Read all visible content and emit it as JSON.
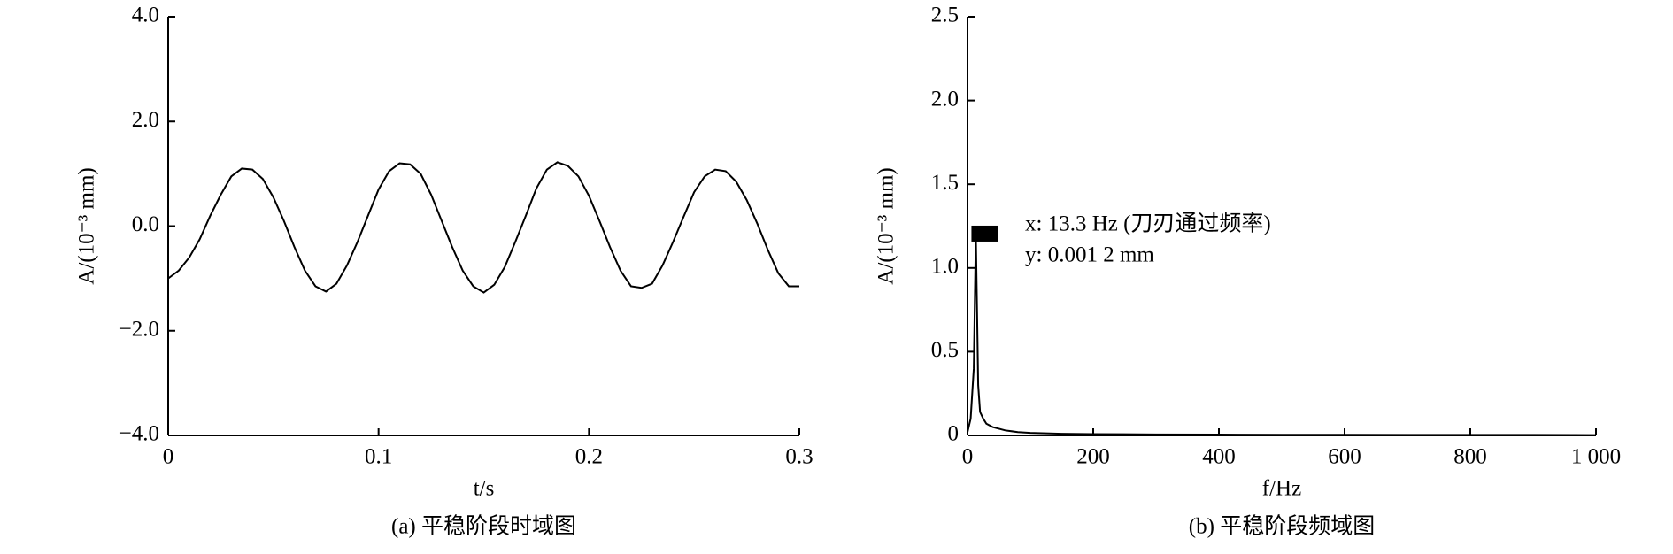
{
  "chart_data": [
    {
      "type": "line",
      "caption": "(a) 平稳阶段时域图",
      "xlabel": "t/s",
      "ylabel": "A/(10⁻³ mm)",
      "x": [
        0,
        0.005,
        0.01,
        0.015,
        0.02,
        0.025,
        0.03,
        0.035,
        0.04,
        0.045,
        0.05,
        0.055,
        0.06,
        0.065,
        0.07,
        0.075,
        0.08,
        0.085,
        0.09,
        0.095,
        0.1,
        0.105,
        0.11,
        0.115,
        0.12,
        0.125,
        0.13,
        0.135,
        0.14,
        0.145,
        0.15,
        0.155,
        0.16,
        0.165,
        0.17,
        0.175,
        0.18,
        0.185,
        0.19,
        0.195,
        0.2,
        0.205,
        0.21,
        0.215,
        0.22,
        0.225,
        0.23,
        0.235,
        0.24,
        0.245,
        0.25,
        0.255,
        0.26,
        0.265,
        0.27,
        0.275,
        0.28,
        0.285,
        0.29,
        0.295,
        0.3
      ],
      "series": [
        {
          "name": "A",
          "color": "#000000",
          "values": [
            -1.0,
            -0.85,
            -0.6,
            -0.25,
            0.2,
            0.6,
            0.95,
            1.1,
            1.08,
            0.9,
            0.55,
            0.1,
            -0.4,
            -0.85,
            -1.15,
            -1.25,
            -1.1,
            -0.75,
            -0.3,
            0.2,
            0.7,
            1.05,
            1.2,
            1.18,
            1.0,
            0.6,
            0.1,
            -0.4,
            -0.85,
            -1.15,
            -1.27,
            -1.12,
            -0.78,
            -0.3,
            0.2,
            0.72,
            1.08,
            1.22,
            1.15,
            0.95,
            0.58,
            0.1,
            -0.4,
            -0.85,
            -1.15,
            -1.18,
            -1.1,
            -0.75,
            -0.3,
            0.18,
            0.65,
            0.95,
            1.08,
            1.05,
            0.85,
            0.5,
            0.05,
            -0.45,
            -0.9,
            -1.15,
            -1.15
          ]
        }
      ],
      "xlim": [
        0,
        0.3
      ],
      "ylim": [
        -4.0,
        4.0
      ],
      "xticks": [
        0,
        0.1,
        0.2,
        0.3
      ],
      "yticks": [
        {
          "value": -4.0,
          "label": "−4.0"
        },
        {
          "value": -2.0,
          "label": "−2.0"
        },
        {
          "value": 0.0,
          "label": "0.0"
        },
        {
          "value": 2.0,
          "label": "2.0"
        },
        {
          "value": 4.0,
          "label": "4.0"
        }
      ]
    },
    {
      "type": "line",
      "caption": "(b) 平稳阶段频域图",
      "xlabel": "f/Hz",
      "ylabel": "A/(10⁻³ mm)",
      "annotation": [
        "x: 13.3 Hz (刀刃通过频率)",
        "y: 0.001 2 mm"
      ],
      "x": [
        0,
        5,
        10,
        13.3,
        17,
        20,
        25,
        30,
        40,
        50,
        60,
        80,
        100,
        150,
        200,
        300,
        400,
        500,
        600,
        700,
        800,
        900,
        1000
      ],
      "series": [
        {
          "name": "A",
          "color": "#000000",
          "values": [
            0.02,
            0.1,
            0.4,
            1.2,
            0.3,
            0.14,
            0.1,
            0.07,
            0.05,
            0.04,
            0.03,
            0.02,
            0.015,
            0.01,
            0.008,
            0.006,
            0.005,
            0.004,
            0.004,
            0.003,
            0.003,
            0.003,
            0.002
          ]
        }
      ],
      "xlim": [
        0,
        1000
      ],
      "ylim": [
        0,
        2.5
      ],
      "xticks": [
        0,
        200,
        400,
        600,
        800,
        {
          "value": 1000,
          "label": "1 000"
        }
      ],
      "yticks": [
        0,
        0.5,
        {
          "value": 1.0,
          "label": "1.0"
        },
        1.5,
        {
          "value": 2.0,
          "label": "2.0"
        },
        2.5
      ]
    }
  ]
}
